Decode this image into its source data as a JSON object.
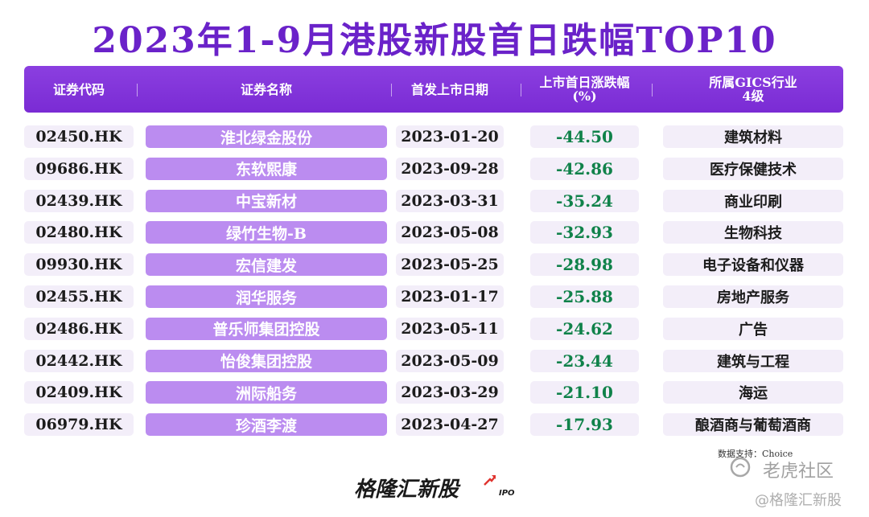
{
  "title": "2023年1-9月港股新股首日跌幅TOP10",
  "header": {
    "code": "证券代码",
    "name": "证券名称",
    "date": "首发上市日期",
    "change_line1": "上市首日涨跌幅",
    "change_line2": "(%)",
    "industry_line1": "所属GICS行业",
    "industry_line2": "4级"
  },
  "chart_data": {
    "type": "table",
    "title": "2023年1-9月港股新股首日跌幅TOP10",
    "columns": [
      "证券代码",
      "证券名称",
      "首发上市日期",
      "上市首日涨跌幅(%)",
      "所属GICS行业4级"
    ],
    "rows": [
      {
        "code": "02450.HK",
        "name": "淮北绿金股份",
        "date": "2023-01-20",
        "change": "-44.50",
        "industry": "建筑材料"
      },
      {
        "code": "09686.HK",
        "name": "东软熙康",
        "date": "2023-09-28",
        "change": "-42.86",
        "industry": "医疗保健技术"
      },
      {
        "code": "02439.HK",
        "name": "中宝新材",
        "date": "2023-03-31",
        "change": "-35.24",
        "industry": "商业印刷"
      },
      {
        "code": "02480.HK",
        "name": "绿竹生物-B",
        "date": "2023-05-08",
        "change": "-32.93",
        "industry": "生物科技"
      },
      {
        "code": "09930.HK",
        "name": "宏信建发",
        "date": "2023-05-25",
        "change": "-28.98",
        "industry": "电子设备和仪器"
      },
      {
        "code": "02455.HK",
        "name": "润华服务",
        "date": "2023-01-17",
        "change": "-25.88",
        "industry": "房地产服务"
      },
      {
        "code": "02486.HK",
        "name": "普乐师集团控股",
        "date": "2023-05-11",
        "change": "-24.62",
        "industry": "广告"
      },
      {
        "code": "02442.HK",
        "name": "怡俊集团控股",
        "date": "2023-05-09",
        "change": "-23.44",
        "industry": "建筑与工程"
      },
      {
        "code": "02409.HK",
        "name": "洲际船务",
        "date": "2023-03-29",
        "change": "-21.10",
        "industry": "海运"
      },
      {
        "code": "06979.HK",
        "name": "珍酒李渡",
        "date": "2023-04-27",
        "change": "-17.93",
        "industry": "酿酒商与葡萄酒商"
      }
    ]
  },
  "source": "数据支持：Choice",
  "brand": {
    "name": "格隆汇新股",
    "suffix": "IPO"
  },
  "watermark": {
    "site": "老虎社区",
    "handle": "@格隆汇新股"
  },
  "colors": {
    "accent": "#7a2bd4",
    "title": "#6a22c9",
    "name_cell": "#bb8cf0",
    "light_cell": "#f3eef9",
    "negative": "#10824a"
  }
}
